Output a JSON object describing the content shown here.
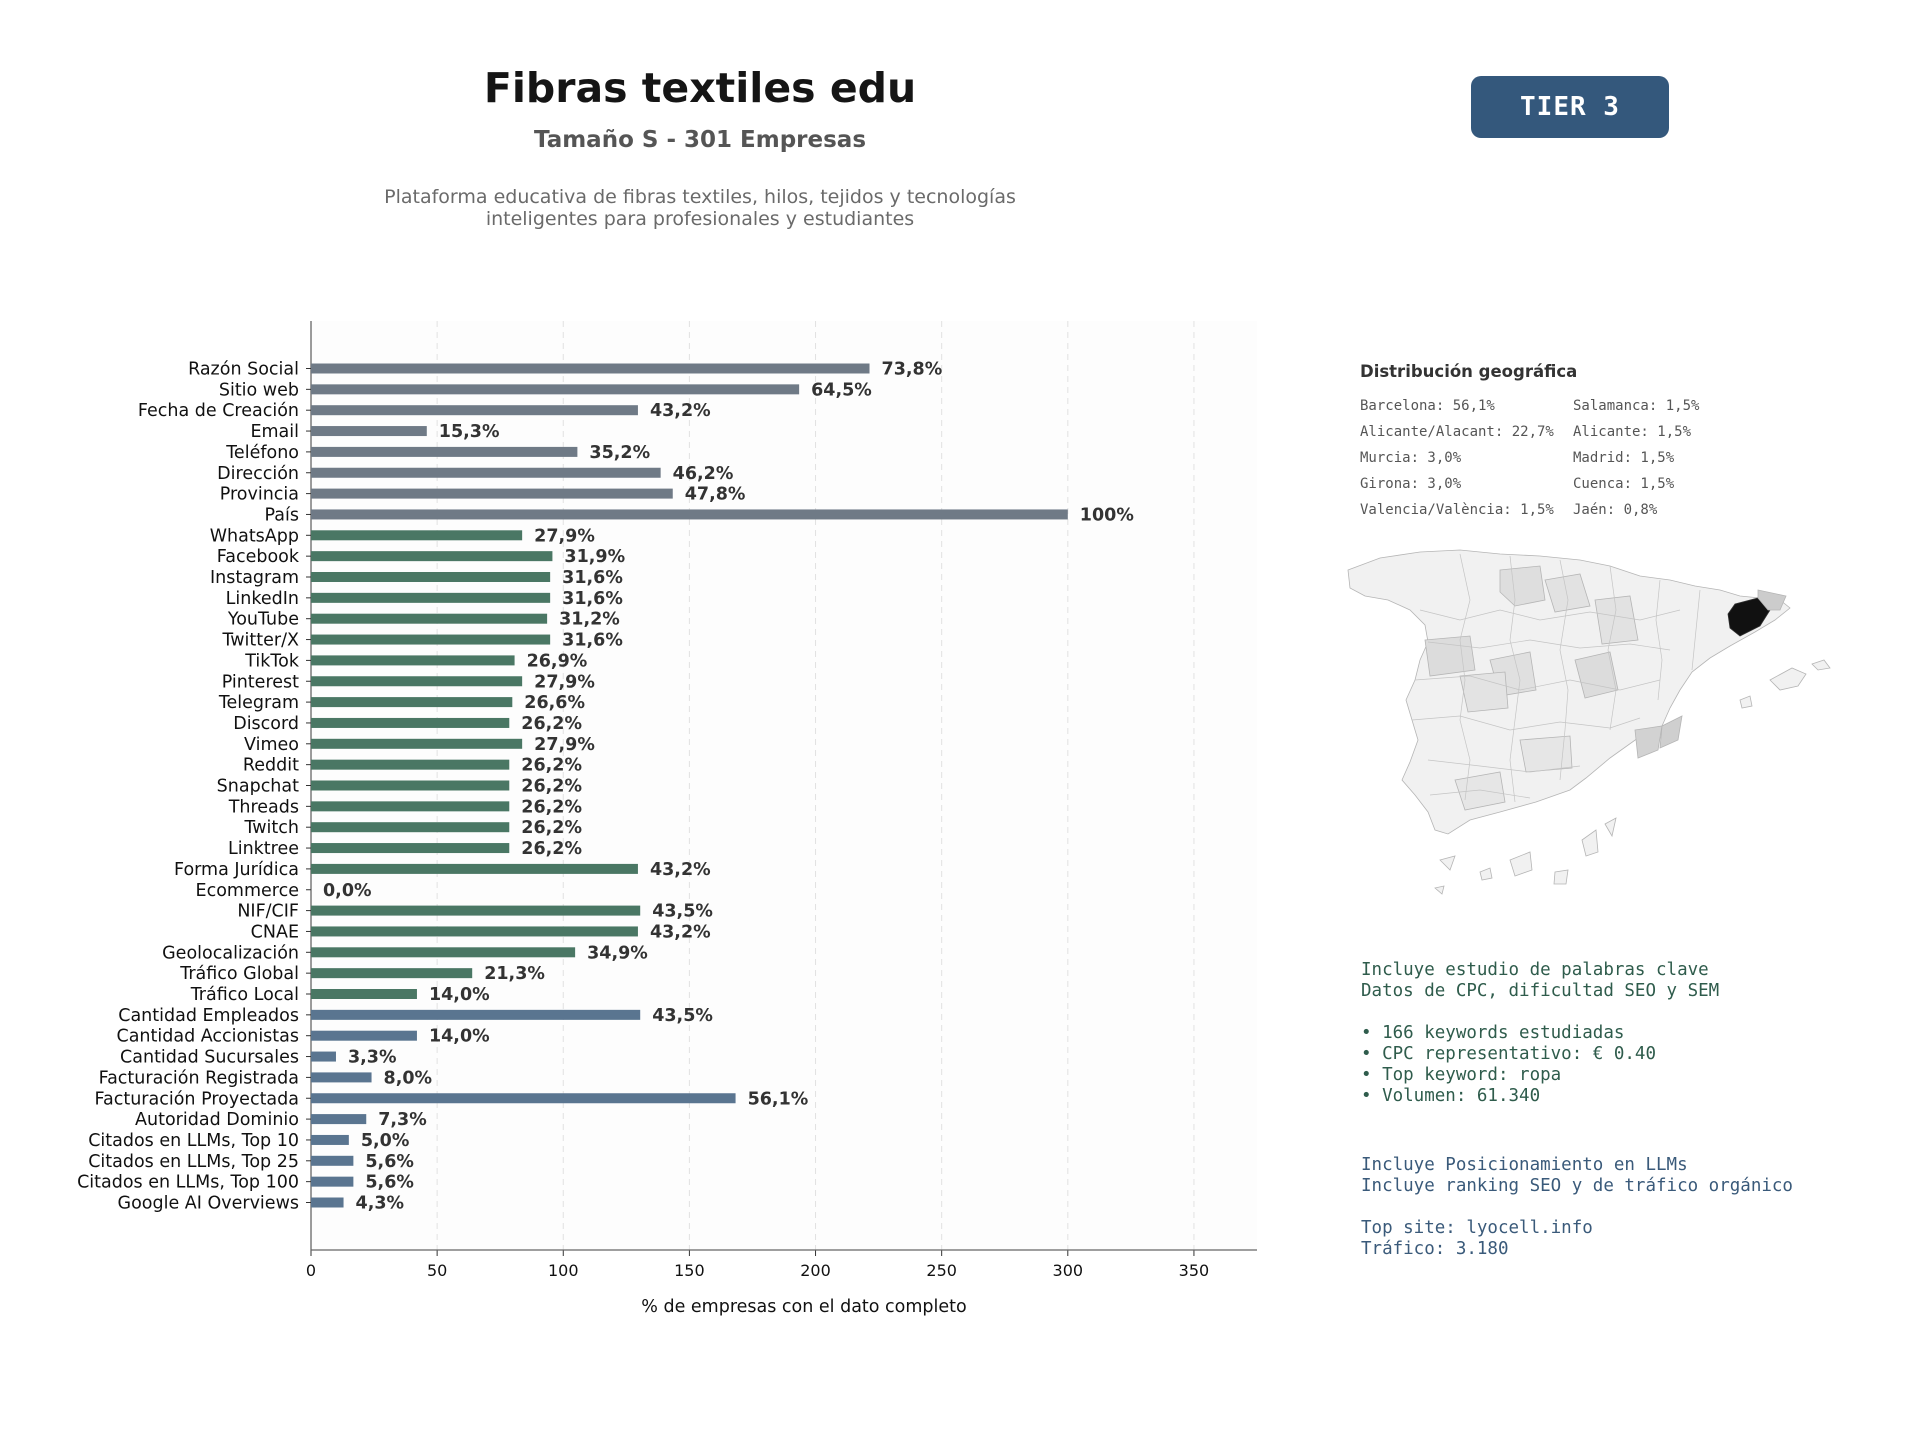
{
  "header": {
    "title": "Fibras textiles edu",
    "subtitle": "Tamaño S - 301 Empresas",
    "description_line1": "Plataforma educativa de fibras textiles, hilos, tejidos y tecnologías",
    "description_line2": "inteligentes para profesionales y estudiantes"
  },
  "tier": {
    "label": "TIER 3",
    "color": "#34587c"
  },
  "chart_data": {
    "type": "bar",
    "orientation": "horizontal",
    "xlabel": "% de empresas con el dato completo",
    "xlim": [
      0,
      375
    ],
    "xticks": [
      0,
      50,
      100,
      150,
      200,
      250,
      300,
      350
    ],
    "grid": "vertical dashed",
    "categories": [
      "Razón Social",
      "Sitio web",
      "Fecha de Creación",
      "Email",
      "Teléfono",
      "Dirección",
      "Provincia",
      "País",
      "WhatsApp",
      "Facebook",
      "Instagram",
      "LinkedIn",
      "YouTube",
      "Twitter/X",
      "TikTok",
      "Pinterest",
      "Telegram",
      "Discord",
      "Vimeo",
      "Reddit",
      "Snapchat",
      "Threads",
      "Twitch",
      "Linktree",
      "Forma Jurídica",
      "Ecommerce",
      "NIF/CIF",
      "CNAE",
      "Geolocalización",
      "Tráfico Global",
      "Tráfico Local",
      "Cantidad Empleados",
      "Cantidad Accionistas",
      "Cantidad Sucursales",
      "Facturación Registrada",
      "Facturación Proyectada",
      "Autoridad Dominio",
      "Citados en LLMs, Top 10",
      "Citados en LLMs, Top 25",
      "Citados en LLMs, Top 100",
      "Google AI Overviews"
    ],
    "bar_values": [
      221.4,
      193.5,
      129.6,
      45.9,
      105.6,
      138.6,
      143.4,
      300,
      83.7,
      95.7,
      94.8,
      94.8,
      93.6,
      94.8,
      80.7,
      83.7,
      79.8,
      78.6,
      83.7,
      78.6,
      78.6,
      78.6,
      78.6,
      78.6,
      129.6,
      0,
      130.5,
      129.6,
      104.7,
      63.9,
      42,
      130.5,
      42,
      9.9,
      24,
      168.3,
      21.9,
      15,
      16.8,
      16.8,
      12.9
    ],
    "labels": [
      "73,8%",
      "64,5%",
      "43,2%",
      "15,3%",
      "35,2%",
      "46,2%",
      "47,8%",
      "100%",
      "27,9%",
      "31,9%",
      "31,6%",
      "31,6%",
      "31,2%",
      "31,6%",
      "26,9%",
      "27,9%",
      "26,6%",
      "26,2%",
      "27,9%",
      "26,2%",
      "26,2%",
      "26,2%",
      "26,2%",
      "26,2%",
      "43,2%",
      "0,0%",
      "43,5%",
      "43,2%",
      "34,9%",
      "21,3%",
      "14,0%",
      "43,5%",
      "14,0%",
      "3,3%",
      "8,0%",
      "56,1%",
      "7,3%",
      "5,0%",
      "5,6%",
      "5,6%",
      "4,3%"
    ],
    "groups": [
      {
        "from": 0,
        "to": 7,
        "color": "#6f7a86"
      },
      {
        "from": 8,
        "to": 30,
        "color": "#4a7764"
      },
      {
        "from": 31,
        "to": 40,
        "color": "#5a7590"
      }
    ]
  },
  "geo": {
    "title": "Distribución geográfica",
    "items": [
      "Barcelona: 56,1%",
      "Salamanca: 1,5%",
      "Alicante/Alacant: 22,7%",
      "Alicante: 1,5%",
      "Murcia: 3,0%",
      "Madrid: 1,5%",
      "Girona: 3,0%",
      "Cuenca: 1,5%",
      "Valencia/València: 1,5%",
      "Jaén: 0,8%"
    ]
  },
  "keywords": {
    "line1": "Incluye estudio de palabras clave",
    "line2": "Datos de CPC, dificultad SEO y SEM",
    "bullet1": "• 166 keywords estudiadas",
    "bullet2": "• CPC representativo: € 0.40",
    "bullet3": "• Top keyword: ropa",
    "bullet4": "• Volumen: 61.340"
  },
  "llm": {
    "line1": "Incluye Posicionamiento en LLMs",
    "line2": "Incluye ranking SEO y de tráfico orgánico",
    "top_site": "Top site: lyocell.info",
    "traffic": "Tráfico: 3.180"
  }
}
